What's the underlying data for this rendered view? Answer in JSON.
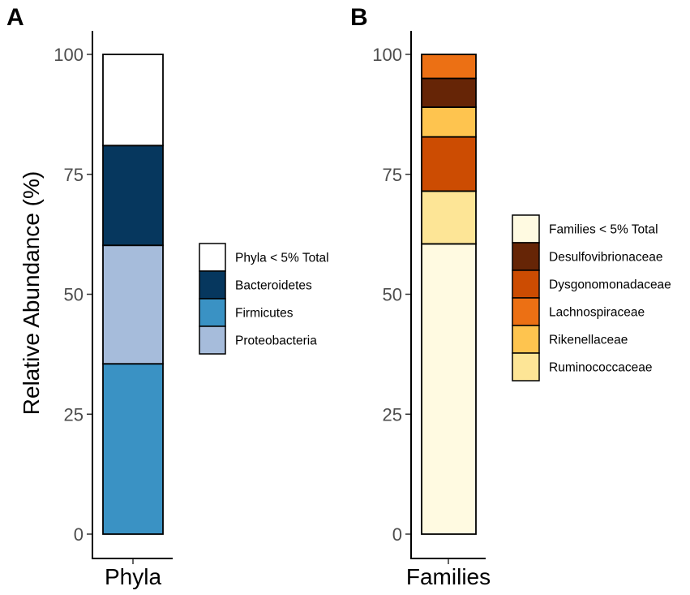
{
  "ylabel": "Relative Abundance (%)",
  "chart_data": [
    {
      "panel": "A",
      "type": "bar",
      "stacked": true,
      "categories": [
        "Phyla"
      ],
      "ylim": [
        0,
        100
      ],
      "yticks": [
        0,
        25,
        50,
        75,
        100
      ],
      "ylabel": "Relative Abundance (%)",
      "series": [
        {
          "name": "Firmicutes",
          "values": [
            35.5
          ],
          "color": "#3a92c4"
        },
        {
          "name": "Proteobacteria",
          "values": [
            24.7
          ],
          "color": "#a6bcdb"
        },
        {
          "name": "Bacteroidetes",
          "values": [
            20.8
          ],
          "color": "#06375e"
        },
        {
          "name": "Phyla < 5% Total",
          "values": [
            19.0
          ],
          "color": "#ffffff"
        }
      ],
      "legend": [
        "Phyla < 5% Total",
        "Bacteroidetes",
        "Firmicutes",
        "Proteobacteria"
      ]
    },
    {
      "panel": "B",
      "type": "bar",
      "stacked": true,
      "categories": [
        "Families"
      ],
      "ylim": [
        0,
        100
      ],
      "yticks": [
        0,
        25,
        50,
        75,
        100
      ],
      "series": [
        {
          "name": "Families < 5% Total",
          "values": [
            60.5
          ],
          "color": "#fffae1"
        },
        {
          "name": "Ruminococcaceae",
          "values": [
            11.0
          ],
          "color": "#fde596"
        },
        {
          "name": "Dysgonomonadaceae",
          "values": [
            11.3
          ],
          "color": "#cc4c02"
        },
        {
          "name": "Rikenellaceae",
          "values": [
            6.2
          ],
          "color": "#fec44f"
        },
        {
          "name": "Desulfovibrionaceae",
          "values": [
            6.0
          ],
          "color": "#662506"
        },
        {
          "name": "Lachnospiraceae",
          "values": [
            5.0
          ],
          "color": "#ec7014"
        }
      ],
      "legend": [
        "Families < 5% Total",
        "Desulfovibrionaceae",
        "Dysgonomonadaceae",
        "Lachnospiraceae",
        "Rikenellaceae",
        "Ruminococcaceae"
      ]
    }
  ]
}
